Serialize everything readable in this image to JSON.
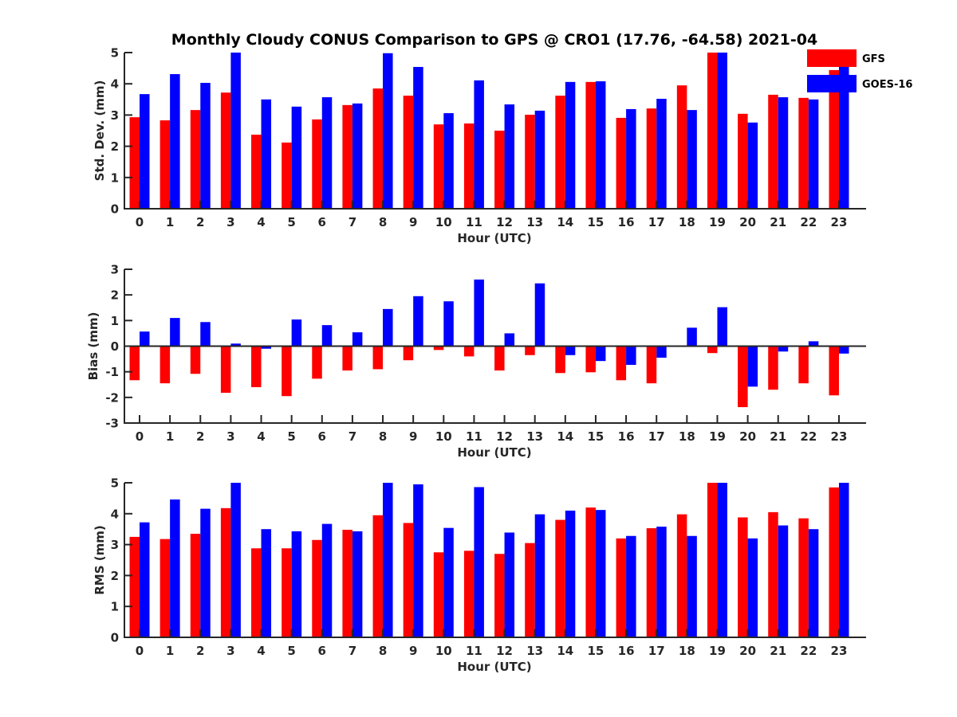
{
  "title": "Monthly Cloudy CONUS Comparison to GPS @ CRO1 (17.76, -64.58) 2021-04",
  "legend": [
    {
      "name": "GFS",
      "color": "#ff0000"
    },
    {
      "name": "GOES-16",
      "color": "#0000ff"
    }
  ],
  "chart_data": [
    {
      "type": "bar",
      "title": "Monthly Cloudy CONUS Comparison to GPS @ CRO1 (17.76, -64.58) 2021-04",
      "xlabel": "Hour (UTC)",
      "ylabel": "Std. Dev. (mm)",
      "ylim": [
        0,
        5
      ],
      "yticks": [
        0,
        1,
        2,
        3,
        4,
        5
      ],
      "categories": [
        "0",
        "1",
        "2",
        "3",
        "4",
        "5",
        "6",
        "7",
        "8",
        "9",
        "10",
        "11",
        "12",
        "13",
        "14",
        "15",
        "16",
        "17",
        "18",
        "19",
        "20",
        "21",
        "22",
        "23"
      ],
      "series": [
        {
          "name": "GFS",
          "color": "#ff0000",
          "values": [
            2.93,
            2.83,
            3.16,
            3.72,
            2.37,
            2.12,
            2.86,
            3.32,
            3.85,
            3.62,
            2.7,
            2.73,
            2.5,
            3.01,
            3.62,
            4.06,
            2.91,
            3.21,
            3.95,
            5.0,
            3.04,
            3.65,
            3.55,
            4.44
          ]
        },
        {
          "name": "GOES-16",
          "color": "#0000ff",
          "values": [
            3.67,
            4.31,
            4.03,
            5.0,
            3.5,
            3.27,
            3.57,
            3.37,
            4.98,
            4.54,
            3.06,
            4.11,
            3.34,
            3.14,
            4.06,
            4.08,
            3.19,
            3.52,
            3.16,
            5.0,
            2.76,
            3.57,
            3.5,
            4.75
          ]
        }
      ],
      "legend": "top-right",
      "grid": false
    },
    {
      "type": "bar",
      "title": "",
      "xlabel": "Hour (UTC)",
      "ylabel": "Bias (mm)",
      "ylim": [
        -3,
        3
      ],
      "yticks": [
        -3,
        -2,
        -1,
        0,
        1,
        2,
        3
      ],
      "categories": [
        "0",
        "1",
        "2",
        "3",
        "4",
        "5",
        "6",
        "7",
        "8",
        "9",
        "10",
        "11",
        "12",
        "13",
        "14",
        "15",
        "16",
        "17",
        "18",
        "19",
        "20",
        "21",
        "22",
        "23"
      ],
      "series": [
        {
          "name": "GFS",
          "color": "#ff0000",
          "values": [
            -1.33,
            -1.45,
            -1.08,
            -1.82,
            -1.6,
            -1.95,
            -1.27,
            -0.95,
            -0.9,
            -0.55,
            -0.15,
            -0.4,
            -0.95,
            -0.35,
            -1.05,
            -1.02,
            -1.33,
            -1.45,
            0.02,
            -0.27,
            -2.38,
            -1.7,
            -1.45,
            -1.92
          ]
        },
        {
          "name": "GOES-16",
          "color": "#0000ff",
          "values": [
            0.57,
            1.1,
            0.94,
            0.1,
            -0.1,
            1.04,
            0.82,
            0.54,
            1.45,
            1.95,
            1.75,
            2.6,
            0.5,
            2.45,
            -0.35,
            -0.58,
            -0.73,
            -0.45,
            0.72,
            1.52,
            -1.58,
            -0.21,
            0.19,
            -0.29
          ]
        }
      ],
      "grid": false
    },
    {
      "type": "bar",
      "title": "",
      "xlabel": "Hour (UTC)",
      "ylabel": "RMS (mm)",
      "ylim": [
        0,
        5
      ],
      "yticks": [
        0,
        1,
        2,
        3,
        4,
        5
      ],
      "categories": [
        "0",
        "1",
        "2",
        "3",
        "4",
        "5",
        "6",
        "7",
        "8",
        "9",
        "10",
        "11",
        "12",
        "13",
        "14",
        "15",
        "16",
        "17",
        "18",
        "19",
        "20",
        "21",
        "22",
        "23"
      ],
      "series": [
        {
          "name": "GFS",
          "color": "#ff0000",
          "values": [
            3.25,
            3.18,
            3.35,
            4.18,
            2.88,
            2.88,
            3.15,
            3.48,
            3.95,
            3.7,
            2.75,
            2.8,
            2.7,
            3.05,
            3.8,
            4.2,
            3.2,
            3.53,
            3.98,
            5.0,
            3.88,
            4.05,
            3.85,
            4.85
          ]
        },
        {
          "name": "GOES-16",
          "color": "#0000ff",
          "values": [
            3.72,
            4.46,
            4.16,
            5.0,
            3.5,
            3.43,
            3.67,
            3.43,
            5.0,
            4.95,
            3.54,
            4.86,
            3.39,
            3.98,
            4.1,
            4.12,
            3.28,
            3.58,
            3.28,
            5.0,
            3.2,
            3.62,
            3.5,
            5.0
          ]
        }
      ],
      "grid": false
    }
  ]
}
